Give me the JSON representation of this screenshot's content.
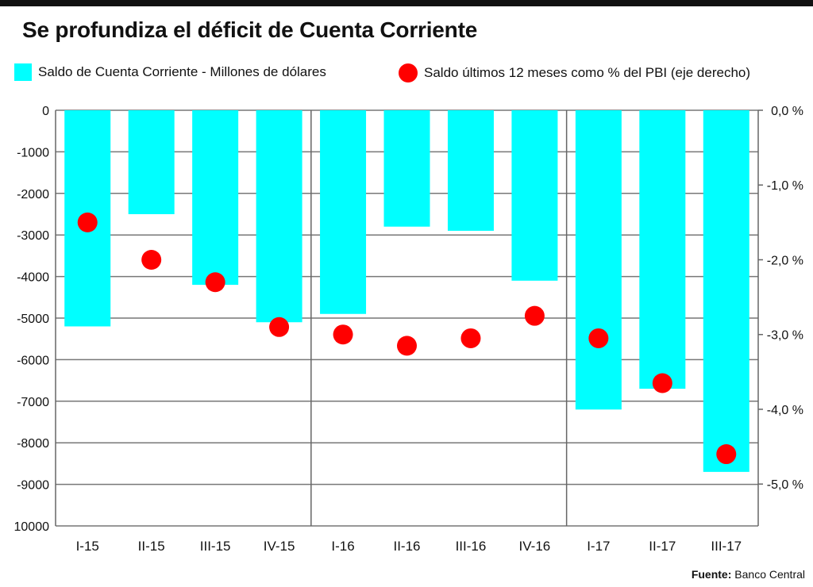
{
  "title": "Se profundiza el déficit de Cuenta Corriente",
  "source": {
    "label": "Fuente:",
    "text": "Banco Central"
  },
  "colors": {
    "bars": "#00FFFF",
    "dots": "#FF0000",
    "grid": "#777777",
    "axis": "#666666",
    "top_bar": "#111111"
  },
  "chart_data": {
    "type": "bar",
    "categories": [
      "I-15",
      "II-15",
      "III-15",
      "IV-15",
      "I-16",
      "II-16",
      "III-16",
      "IV-16",
      "I-17",
      "II-17",
      "III-17"
    ],
    "series": [
      {
        "name": "Saldo de Cuenta Corriente - Millones de dólares",
        "type": "bar",
        "axis": "left",
        "values": [
          -5200,
          -2500,
          -4200,
          -5100,
          -4900,
          -2800,
          -2900,
          -4100,
          -7200,
          -6700,
          -8700
        ]
      },
      {
        "name": "Saldo últimos 12 meses como % del PBI (eje derecho)",
        "type": "scatter",
        "axis": "right",
        "values": [
          -1.5,
          -2.0,
          -2.3,
          -2.9,
          -3.0,
          -3.15,
          -3.05,
          -2.75,
          -3.05,
          -3.65,
          -4.6
        ]
      }
    ],
    "y_left": {
      "ylim": [
        -10000,
        0
      ],
      "ticks": [
        "0",
        "-1000",
        "-2000",
        "-3000",
        "-4000",
        "-5000",
        "-6000",
        "-7000",
        "-8000",
        "-9000",
        "10000"
      ]
    },
    "y_right": {
      "ylim": [
        -5.56,
        0
      ],
      "ticks": [
        "0,0 %",
        "-1,0 %",
        "-2,0 %",
        "-3,0 %",
        "-4,0 %",
        "-5,0 %"
      ],
      "tick_values": [
        0,
        -1,
        -2,
        -3,
        -4,
        -5
      ]
    },
    "year_separators_after": [
      "IV-15",
      "IV-16"
    ],
    "grid": true,
    "legend_position": "top"
  }
}
